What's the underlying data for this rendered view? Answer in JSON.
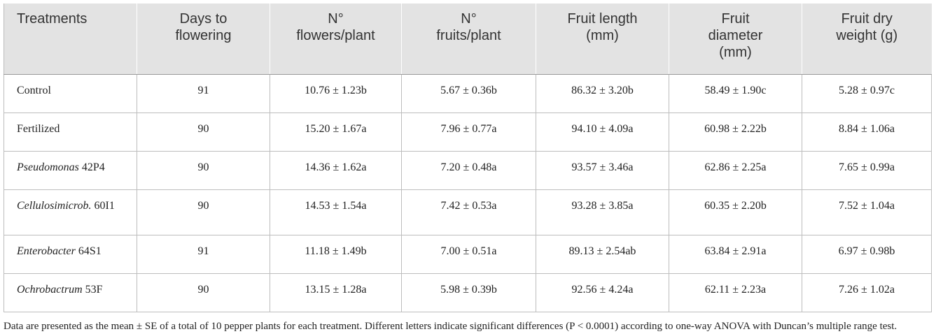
{
  "table": {
    "header": [
      [
        "Treatments"
      ],
      [
        "Days to",
        "flowering"
      ],
      [
        "N°",
        "flowers/plant"
      ],
      [
        "N°",
        "fruits/plant"
      ],
      [
        "Fruit length",
        "(mm)"
      ],
      [
        "Fruit",
        "diameter",
        "(mm)"
      ],
      [
        "Fruit dry",
        "weight (g)"
      ]
    ],
    "rows": [
      [
        {
          "text": "Control"
        },
        "91",
        "10.76 ± 1.23b",
        "5.67 ± 0.36b",
        "86.32 ± 3.20b",
        "58.49 ± 1.90c",
        "5.28 ± 0.97c"
      ],
      [
        {
          "text": "Fertilized"
        },
        "90",
        "15.20 ± 1.67a",
        "7.96 ± 0.77a",
        "94.10 ± 4.09a",
        "60.98 ± 2.22b",
        "8.84 ± 1.06a"
      ],
      [
        {
          "genus": "Pseudomonas",
          "text": "42P4"
        },
        "90",
        "14.36 ± 1.62a",
        "7.20 ± 0.48a",
        "93.57 ± 3.46a",
        "62.86 ± 2.25a",
        "7.65 ± 0.99a"
      ],
      [
        {
          "genus": "Cellulosimicrob.",
          "text": "60I1"
        },
        "90",
        "14.53 ± 1.54a",
        "7.42 ± 0.53a",
        "93.28 ± 3.85a",
        "60.35 ± 2.20b",
        "7.52 ± 1.04a"
      ],
      [
        {
          "genus": "Enterobacter",
          "text": "64S1"
        },
        "91",
        "11.18 ± 1.49b",
        "7.00 ± 0.51a",
        "89.13 ± 2.54ab",
        "63.84 ± 2.91a",
        "6.97 ± 0.98b"
      ],
      [
        {
          "genus": "Ochrobactrum",
          "text": "53F"
        },
        "90",
        "13.15 ± 1.28a",
        "5.98 ± 0.39b",
        "92.56 ± 4.24a",
        "62.11 ± 2.23a",
        "7.26 ± 1.02a"
      ]
    ]
  },
  "footnote": "Data are presented as the mean ± SE of a total of 10 pepper plants for each treatment. Different letters indicate significant differences (P < 0.0001) according to one-way ANOVA with Duncan’s multiple range test."
}
